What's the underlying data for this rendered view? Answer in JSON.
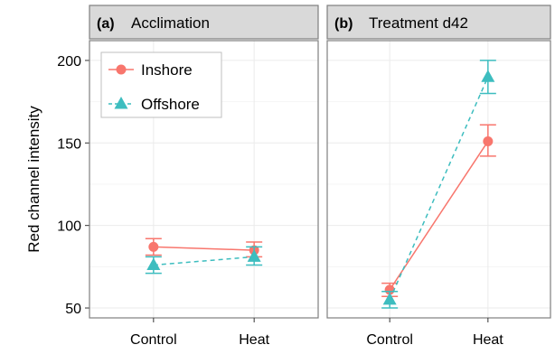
{
  "chart_data": {
    "type": "line",
    "ylabel": "Red channel intensity",
    "xlabel": "",
    "ylim": [
      44,
      212
    ],
    "yticks": [
      50,
      100,
      150,
      200
    ],
    "categories": [
      "Control",
      "Heat"
    ],
    "grid": true,
    "legend_position": "top-left",
    "series_styles": {
      "Inshore": {
        "color": "#F8766D",
        "line": "solid",
        "marker": "circle"
      },
      "Offshore": {
        "color": "#3DBDBF",
        "line": "dashed",
        "marker": "triangle"
      }
    },
    "legend": {
      "items": [
        "Inshore",
        "Offshore"
      ]
    },
    "panels": [
      {
        "tag": "(a)",
        "title": "Acclimation",
        "series": [
          {
            "name": "Inshore",
            "values": [
              87,
              85
            ],
            "lower": [
              82,
              81
            ],
            "upper": [
              92,
              90
            ]
          },
          {
            "name": "Offshore",
            "values": [
              76,
              81
            ],
            "lower": [
              71,
              76
            ],
            "upper": [
              81,
              87
            ]
          }
        ]
      },
      {
        "tag": "(b)",
        "title": "Treatment d42",
        "series": [
          {
            "name": "Inshore",
            "values": [
              61,
              151
            ],
            "lower": [
              57,
              142
            ],
            "upper": [
              65,
              161
            ]
          },
          {
            "name": "Offshore",
            "values": [
              55,
              190
            ],
            "lower": [
              50,
              180
            ],
            "upper": [
              60,
              200
            ]
          }
        ]
      }
    ]
  }
}
